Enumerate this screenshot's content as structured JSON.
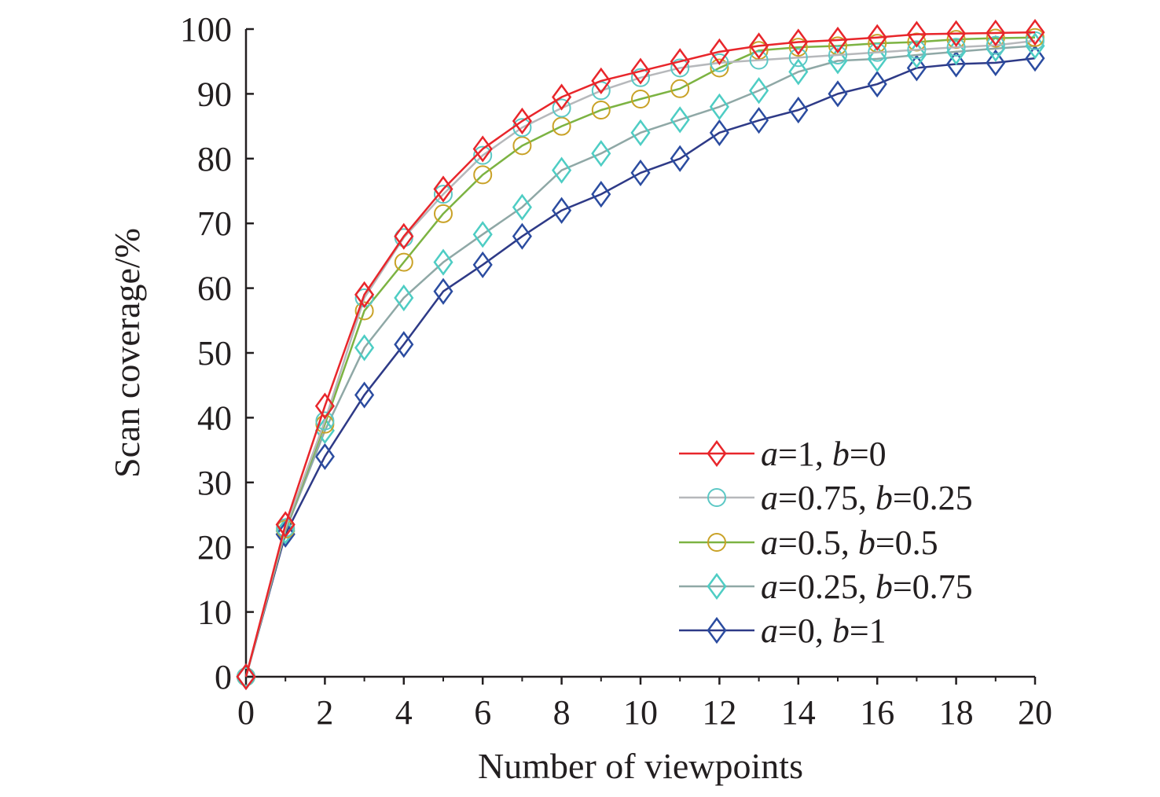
{
  "chart_data": {
    "type": "line",
    "title": "",
    "xlabel": "Number of viewpoints",
    "ylabel": "Scan coverage/%",
    "xlim": [
      0,
      20
    ],
    "ylim": [
      0,
      100
    ],
    "x_ticks": [
      0,
      2,
      4,
      6,
      8,
      10,
      12,
      14,
      16,
      18,
      20
    ],
    "y_ticks": [
      0,
      10,
      20,
      30,
      40,
      50,
      60,
      70,
      80,
      90,
      100
    ],
    "grid": false,
    "legend_position": "bottom-right",
    "x": [
      0,
      1,
      2,
      3,
      4,
      5,
      6,
      7,
      8,
      9,
      10,
      11,
      12,
      13,
      14,
      15,
      16,
      17,
      18,
      19,
      20
    ],
    "series": [
      {
        "legend_parts": [
          "a",
          "=1, ",
          "b",
          "=0"
        ],
        "color": "#e8262b",
        "marker": "diamond",
        "values": [
          0,
          23.5,
          41.8,
          59,
          68,
          75.3,
          81.5,
          85.8,
          89.5,
          92,
          93.5,
          95,
          96.5,
          97.4,
          98,
          98.3,
          98.7,
          99.2,
          99.3,
          99.4,
          99.5
        ]
      },
      {
        "legend_parts": [
          "a",
          "=0.75, ",
          "b",
          "=0.25"
        ],
        "color": "#b6b8bb",
        "marker_color": "#5cc8c5",
        "marker": "circle",
        "values": [
          0,
          23,
          39.5,
          58.5,
          67.8,
          74.5,
          80.5,
          84.8,
          87.8,
          90.5,
          92.5,
          94,
          94.8,
          95.2,
          95.6,
          96,
          96.4,
          96.8,
          97.2,
          97.5,
          98.2
        ]
      },
      {
        "legend_parts": [
          "a",
          "=0.5, ",
          "b",
          "=0.5"
        ],
        "color": "#7cb342",
        "marker_color": "#c9a227",
        "marker": "circle",
        "values": [
          0,
          22.8,
          39,
          56.5,
          64,
          71.5,
          77.5,
          82,
          85,
          87.5,
          89.2,
          90.8,
          94,
          96.7,
          97.2,
          97.4,
          97.8,
          98,
          98.4,
          98.6,
          98.7
        ]
      },
      {
        "legend_parts": [
          "a",
          "=0.25, ",
          "b",
          "=0.75"
        ],
        "color": "#8fa8a6",
        "marker_color": "#4ecdc4",
        "marker": "diamond",
        "values": [
          0,
          22.5,
          38,
          50.8,
          58.5,
          64,
          68.3,
          72.5,
          78.2,
          80.8,
          84,
          86,
          88,
          90.5,
          93.4,
          95.1,
          95.4,
          96,
          96.5,
          97,
          97.4
        ]
      },
      {
        "legend_parts": [
          "a",
          "=0, ",
          "b",
          "=1"
        ],
        "color": "#2e3a87",
        "marker_color": "#2b4ca0",
        "marker": "diamond",
        "values": [
          0,
          22,
          34,
          43.5,
          51.3,
          59.5,
          63.6,
          68,
          72,
          74.5,
          77.8,
          80,
          84,
          85.9,
          87.5,
          90,
          91.5,
          94,
          94.6,
          94.8,
          95.5
        ]
      }
    ]
  }
}
